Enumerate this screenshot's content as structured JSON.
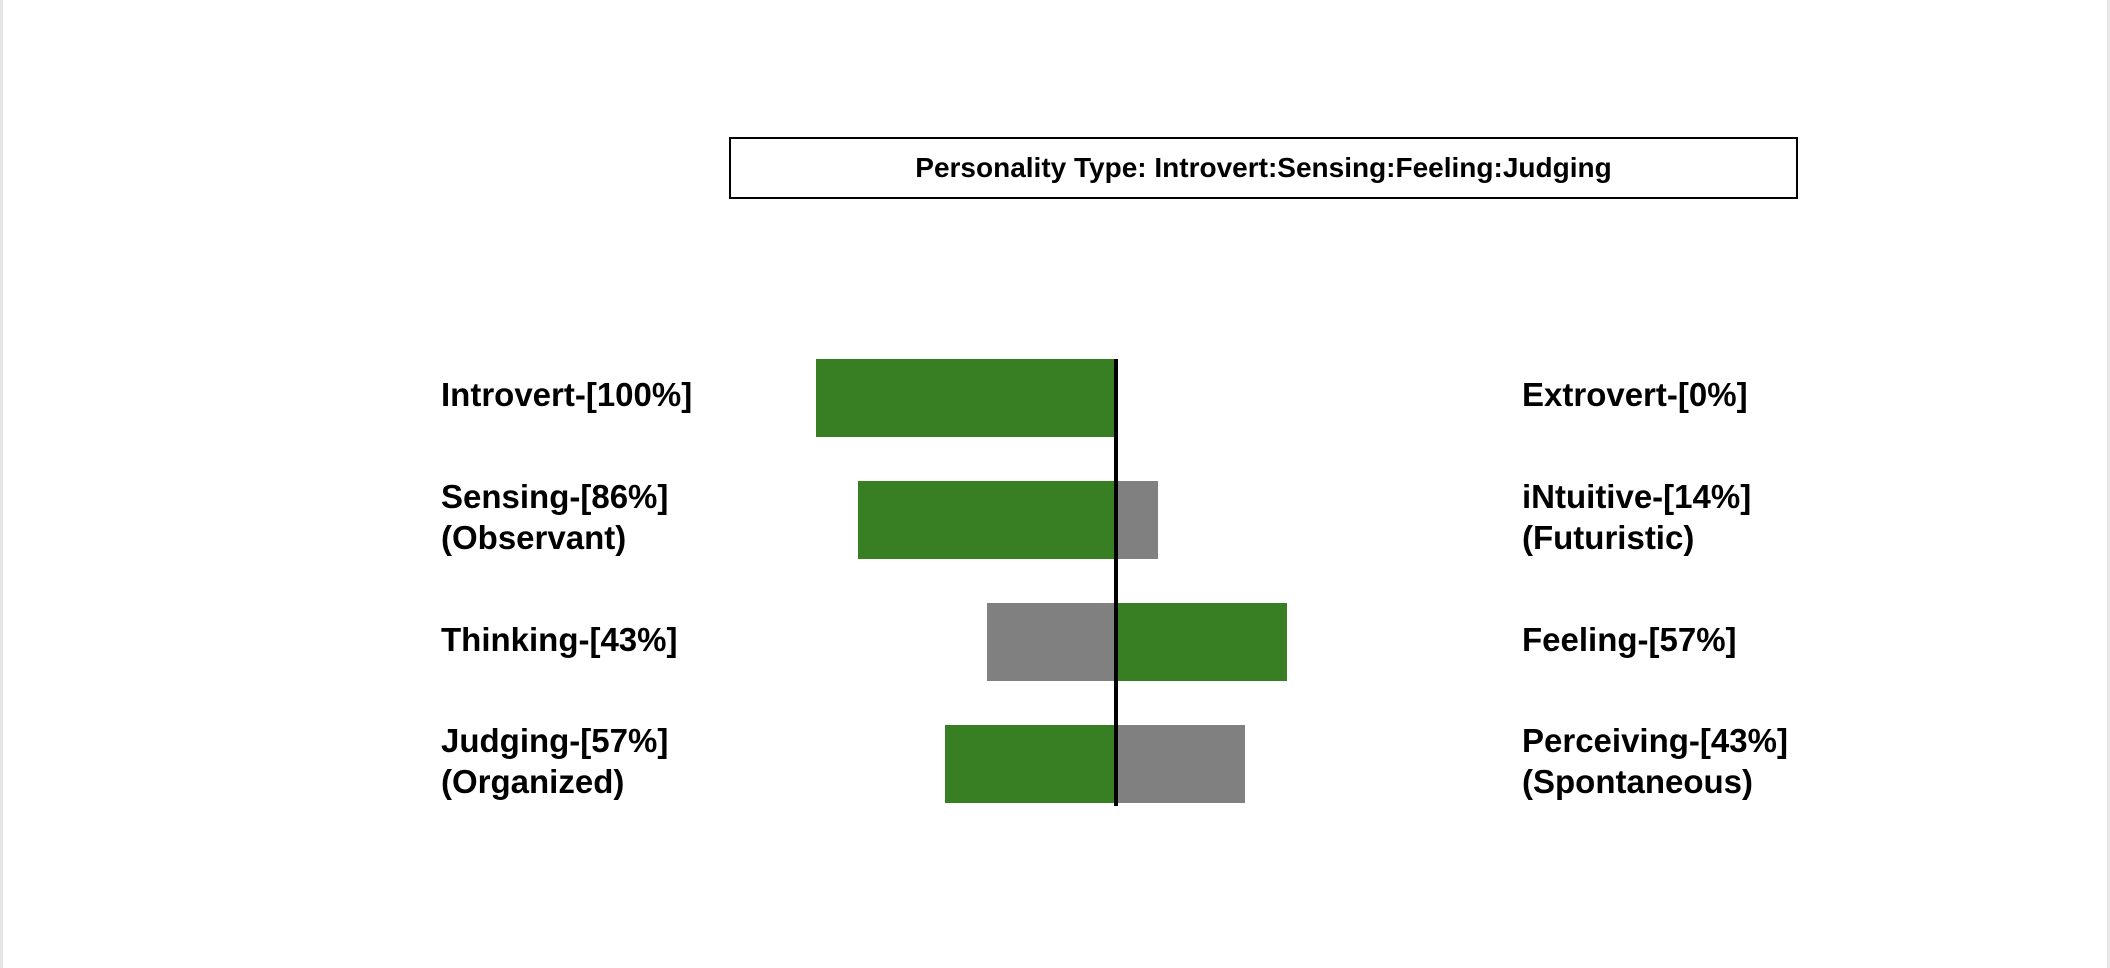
{
  "chart_data": {
    "type": "bar",
    "title": "Personality Type: Introvert:Sensing:Feeling:Judging",
    "xlim": [
      -100,
      100
    ],
    "rows": [
      {
        "left": {
          "label": "Introvert-[100%]",
          "sub": "",
          "value": 100
        },
        "right": {
          "label": "Extrovert-[0%]",
          "sub": "",
          "value": 0
        },
        "dominant": "left"
      },
      {
        "left": {
          "label": "Sensing-[86%]",
          "sub": "(Observant)",
          "value": 86
        },
        "right": {
          "label": "iNtuitive-[14%]",
          "sub": "(Futuristic)",
          "value": 14
        },
        "dominant": "left"
      },
      {
        "left": {
          "label": "Thinking-[43%]",
          "sub": "",
          "value": 43
        },
        "right": {
          "label": "Feeling-[57%]",
          "sub": "",
          "value": 57
        },
        "dominant": "right"
      },
      {
        "left": {
          "label": "Judging-[57%]",
          "sub": "(Organized)",
          "value": 57
        },
        "right": {
          "label": "Perceiving-[43%]",
          "sub": "(Spontaneous)",
          "value": 43
        },
        "dominant": "left"
      }
    ],
    "colors": {
      "dominant": "#387f23",
      "secondary": "#808080",
      "axis": "#000000"
    }
  }
}
